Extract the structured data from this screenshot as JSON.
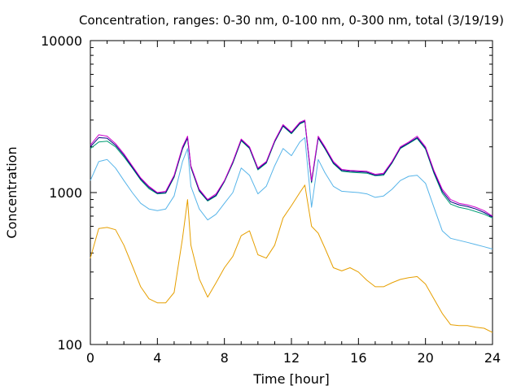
{
  "chart_data": {
    "type": "line",
    "title": "Concentration, ranges: 0-30 nm, 0-100 nm, 0-300 nm, total (3/19/19)",
    "xlabel": "Time [hour]",
    "ylabel": "Concentration",
    "xlim": [
      0,
      24
    ],
    "ylim": [
      100,
      10000
    ],
    "yscale": "log",
    "grid": false,
    "legend": "none",
    "x_ticks": [
      "0",
      "4",
      "8",
      "12",
      "16",
      "20",
      "24"
    ],
    "y_ticks": [
      "100",
      "1000",
      "10000"
    ],
    "x": [
      0,
      0.5,
      1,
      1.5,
      2,
      2.5,
      3,
      3.5,
      4,
      4.5,
      5,
      5.5,
      5.8,
      6,
      6.5,
      7,
      7.5,
      8,
      8.5,
      9,
      9.5,
      10,
      10.5,
      11,
      11.5,
      12,
      12.5,
      12.8,
      13.2,
      13.6,
      14,
      14.5,
      15,
      15.5,
      16,
      16.5,
      17,
      17.5,
      18,
      18.5,
      19,
      19.5,
      20,
      20.5,
      21,
      21.5,
      22,
      22.5,
      23,
      23.5,
      24
    ],
    "series": [
      {
        "color": "#cc00cc",
        "values": [
          2050,
          2400,
          2350,
          2100,
          1800,
          1500,
          1250,
          1100,
          1000,
          1020,
          1300,
          2000,
          2350,
          1500,
          1050,
          900,
          980,
          1200,
          1600,
          2250,
          2000,
          1450,
          1600,
          2200,
          2800,
          2500,
          2900,
          3000,
          1200,
          2350,
          2000,
          1600,
          1420,
          1400,
          1390,
          1380,
          1320,
          1340,
          1600,
          2000,
          2150,
          2350,
          2000,
          1400,
          1050,
          900,
          850,
          830,
          800,
          760,
          700
        ]
      },
      {
        "color": "#000080",
        "values": [
          2000,
          2300,
          2280,
          2050,
          1760,
          1470,
          1230,
          1080,
          990,
          1000,
          1280,
          1960,
          2300,
          1480,
          1030,
          890,
          960,
          1190,
          1580,
          2220,
          1970,
          1430,
          1580,
          2170,
          2760,
          2470,
          2860,
          2960,
          1180,
          2300,
          1960,
          1570,
          1400,
          1380,
          1370,
          1360,
          1300,
          1320,
          1580,
          1970,
          2120,
          2300,
          1960,
          1370,
          1020,
          870,
          830,
          810,
          780,
          740,
          690
        ]
      },
      {
        "color": "#009e73",
        "values": [
          1950,
          2150,
          2180,
          2000,
          1720,
          1450,
          1210,
          1060,
          980,
          990,
          1260,
          1930,
          2280,
          1460,
          1020,
          880,
          950,
          1180,
          1560,
          2190,
          1950,
          1410,
          1560,
          2150,
          2730,
          2440,
          2830,
          2930,
          1160,
          2280,
          1940,
          1550,
          1380,
          1360,
          1350,
          1340,
          1290,
          1300,
          1560,
          1950,
          2100,
          2270,
          1930,
          1340,
          990,
          840,
          800,
          780,
          750,
          720,
          680
        ]
      },
      {
        "color": "#56b4e9",
        "values": [
          1200,
          1600,
          1650,
          1450,
          1200,
          1000,
          850,
          780,
          760,
          780,
          950,
          1600,
          1950,
          1100,
          780,
          660,
          720,
          850,
          1000,
          1450,
          1300,
          980,
          1100,
          1500,
          1950,
          1750,
          2150,
          2300,
          800,
          1650,
          1350,
          1100,
          1020,
          1010,
          1000,
          980,
          930,
          950,
          1050,
          1200,
          1280,
          1300,
          1150,
          800,
          560,
          500,
          485,
          470,
          455,
          440,
          425
        ]
      },
      {
        "color": "#e69f00",
        "values": [
          370,
          580,
          590,
          570,
          450,
          330,
          240,
          200,
          188,
          188,
          220,
          500,
          900,
          450,
          270,
          205,
          255,
          320,
          380,
          520,
          560,
          390,
          370,
          450,
          680,
          820,
          1000,
          1120,
          600,
          540,
          430,
          320,
          305,
          320,
          300,
          265,
          240,
          240,
          255,
          268,
          275,
          280,
          250,
          200,
          160,
          135,
          133,
          133,
          130,
          128,
          120
        ]
      }
    ]
  }
}
